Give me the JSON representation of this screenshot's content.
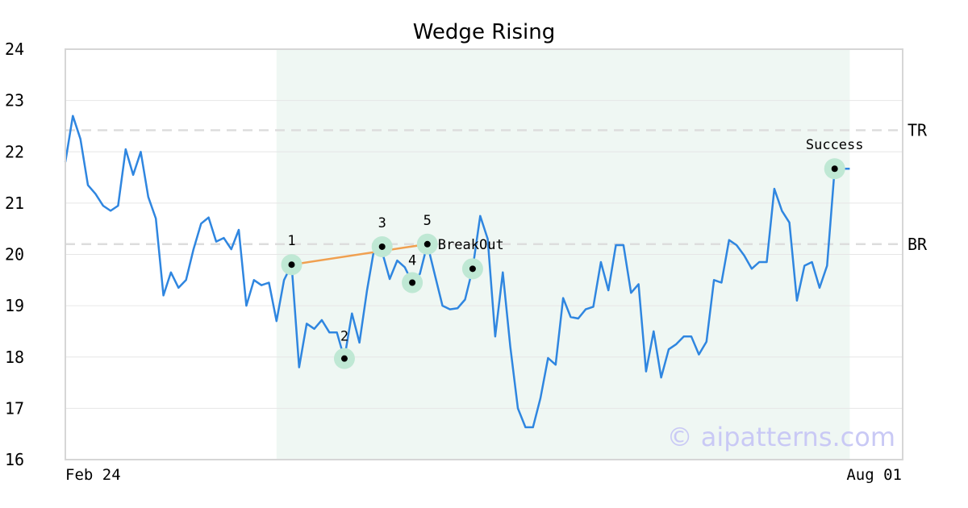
{
  "chart_data": {
    "type": "line",
    "title": "Wedge Rising",
    "x_labels": [
      "Feb 24",
      "Aug 01"
    ],
    "ylim": [
      16,
      24
    ],
    "yticks": [
      16,
      17,
      18,
      19,
      20,
      21,
      22,
      23,
      24
    ],
    "grid": true,
    "series": [
      {
        "values": [
          21.8,
          22.7,
          22.25,
          21.35,
          21.18,
          20.95,
          20.85,
          20.95,
          22.05,
          21.55,
          22.0,
          21.12,
          20.7,
          19.2,
          19.65,
          19.35,
          19.5,
          20.1,
          20.6,
          20.72,
          20.25,
          20.32,
          20.1,
          20.48,
          19.0,
          19.5,
          19.4,
          19.45,
          18.7,
          19.5,
          19.8,
          17.8,
          18.65,
          18.55,
          18.72,
          18.48,
          18.48,
          17.97,
          18.85,
          18.28,
          19.3,
          20.15,
          20.05,
          19.52,
          19.88,
          19.75,
          19.45,
          19.62,
          20.2,
          19.6,
          19.0,
          18.93,
          18.95,
          19.12,
          19.72,
          20.75,
          20.3,
          18.4,
          19.65,
          18.2,
          17.0,
          16.63,
          16.63,
          17.2,
          17.98,
          17.85,
          19.15,
          18.78,
          18.75,
          18.93,
          18.98,
          19.85,
          19.3,
          20.18,
          20.18,
          19.25,
          19.42,
          17.72,
          18.5,
          17.6,
          18.15,
          18.25,
          18.4,
          18.4,
          18.05,
          18.3,
          19.5,
          19.45,
          20.28,
          20.18,
          19.98,
          19.72,
          19.85,
          19.85,
          21.28,
          20.85,
          20.62,
          19.1,
          19.78,
          19.85,
          19.35,
          19.78,
          21.67,
          21.67,
          21.67
        ]
      }
    ],
    "pattern_range": [
      28,
      104
    ],
    "trend_line": [
      [
        30,
        19.8
      ],
      [
        48,
        20.2
      ]
    ],
    "points": [
      {
        "index": 30,
        "value": 19.8,
        "label": "1"
      },
      {
        "index": 37,
        "value": 17.97,
        "label": "2"
      },
      {
        "index": 42,
        "value": 20.15,
        "label": "3"
      },
      {
        "index": 46,
        "value": 19.45,
        "label": "4"
      },
      {
        "index": 48,
        "value": 20.2,
        "label": "5"
      },
      {
        "index": 54,
        "value": 19.72,
        "label": ""
      },
      {
        "index": 102,
        "value": 21.67,
        "label": "Success"
      }
    ],
    "breakout_label": "BreakOut",
    "levels": [
      {
        "value": 22.42,
        "label": "TR"
      },
      {
        "value": 20.2,
        "label": "BR"
      }
    ],
    "colors": {
      "line": "#2f86e0",
      "trend": "#f0a050",
      "pattern_bg": "#eff7f3",
      "marker_halo": "#bfe8d4",
      "level_line": "#dddddd",
      "grid": "#e6e6e6",
      "axis": "#d6d6d6"
    }
  },
  "watermark": "© aipatterns.com"
}
